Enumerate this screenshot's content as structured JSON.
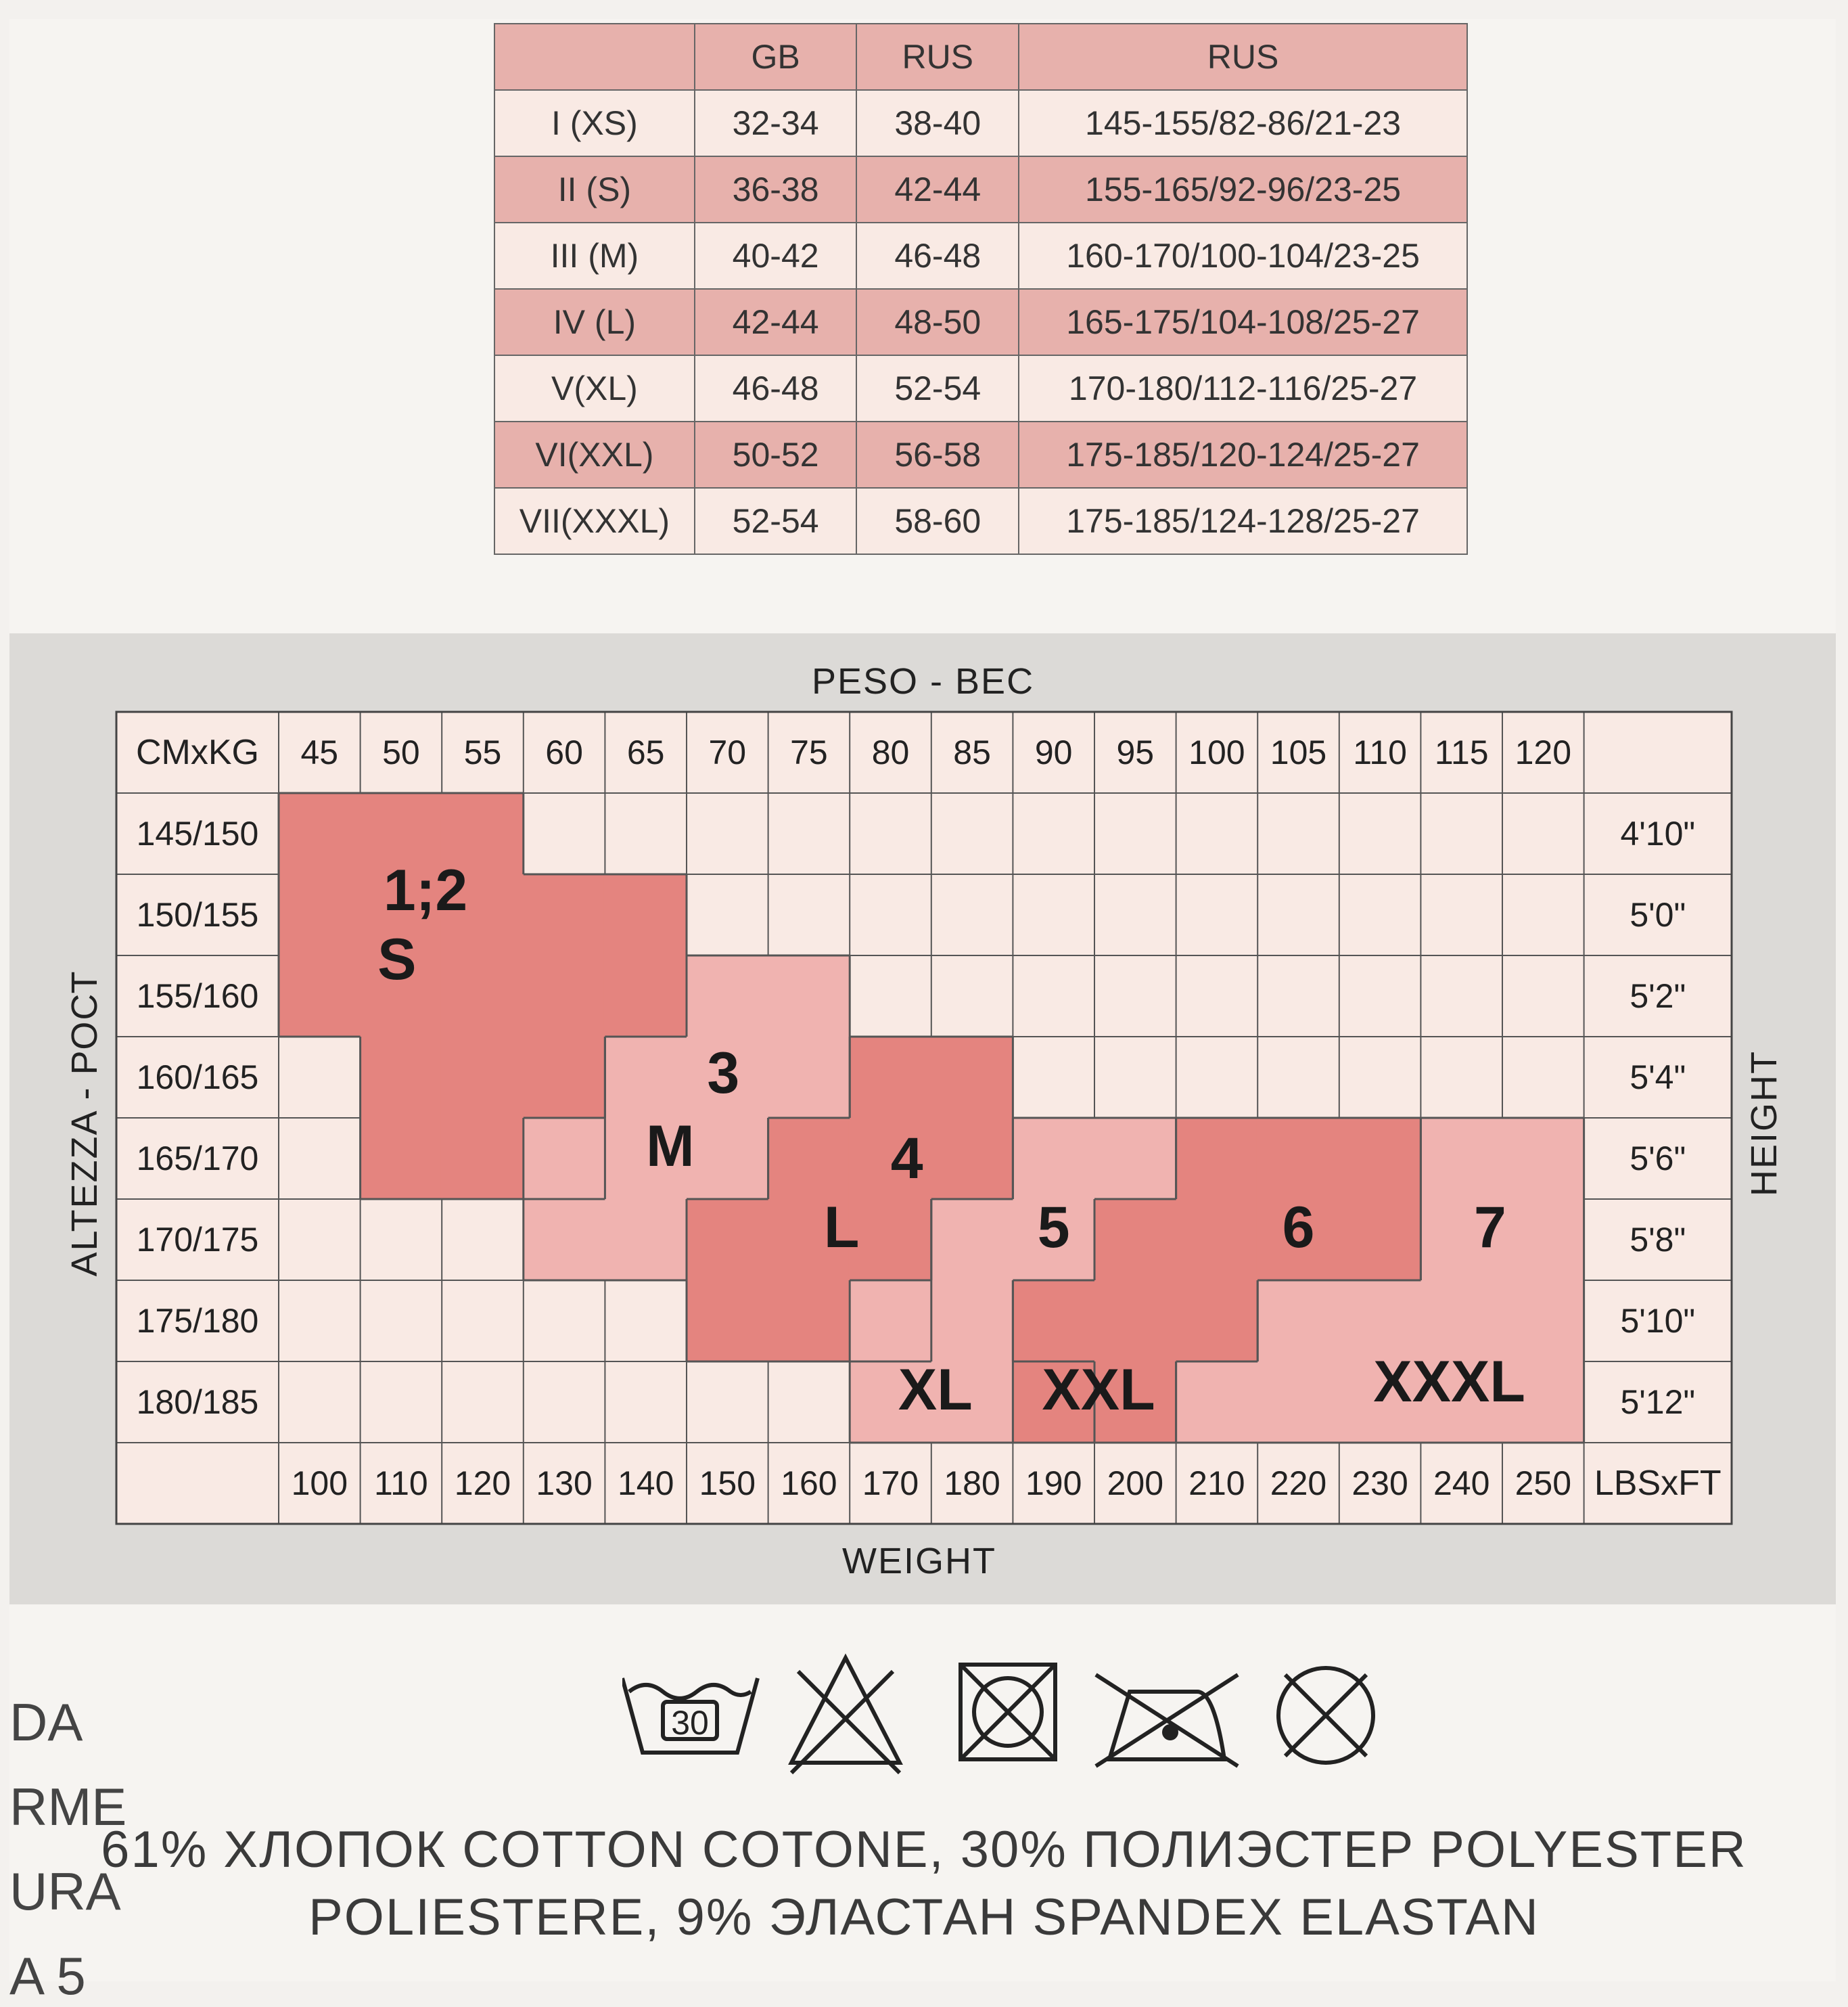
{
  "size_table": {
    "header": [
      "",
      "GB",
      "RUS",
      "RUS"
    ],
    "rows": [
      [
        "I (XS)",
        "32-34",
        "38-40",
        "145-155/82-86/21-23"
      ],
      [
        "II (S)",
        "36-38",
        "42-44",
        "155-165/92-96/23-25"
      ],
      [
        "III (M)",
        "40-42",
        "46-48",
        "160-170/100-104/23-25"
      ],
      [
        "IV (L)",
        "42-44",
        "48-50",
        "165-175/104-108/25-27"
      ],
      [
        "V(XL)",
        "46-48",
        "52-54",
        "170-180/112-116/25-27"
      ],
      [
        "VI(XXL)",
        "50-52",
        "56-58",
        "175-185/120-124/25-27"
      ],
      [
        "VII(XXXL)",
        "52-54",
        "58-60",
        "175-185/124-128/25-27"
      ]
    ]
  },
  "grid": {
    "top_label": "PESO - ВЕС",
    "bottom_label": "WEIGHT",
    "left_label": "ALTEZZA - РОСТ",
    "right_label": "HEIGHT",
    "corner_top": "CMxKG",
    "corner_bottom": "LBSxFT",
    "kg": [
      "45",
      "50",
      "55",
      "60",
      "65",
      "70",
      "75",
      "80",
      "85",
      "90",
      "95",
      "100",
      "105",
      "110",
      "115",
      "120"
    ],
    "lbs": [
      "100",
      "110",
      "120",
      "130",
      "140",
      "150",
      "160",
      "170",
      "180",
      "190",
      "200",
      "210",
      "220",
      "230",
      "240",
      "250"
    ],
    "cm": [
      "145/150",
      "150/155",
      "155/160",
      "160/165",
      "165/170",
      "170/175",
      "175/180",
      "180/185"
    ],
    "ft": [
      "4'10\"",
      "5'0\"",
      "5'2\"",
      "5'4\"",
      "5'6\"",
      "5'8\"",
      "5'10\"",
      "5'12\""
    ],
    "regions": [
      {
        "num": "1;2",
        "size": "S",
        "color": "#e4847f"
      },
      {
        "num": "3",
        "size": "M",
        "color": "#f0b3b0"
      },
      {
        "num": "4",
        "size": "L",
        "color": "#e4847f"
      },
      {
        "num": "5",
        "size": "XL",
        "color": "#f0b3b0"
      },
      {
        "num": "6",
        "size": "XXL",
        "color": "#e4847f"
      },
      {
        "num": "7",
        "size": "XXXL",
        "color": "#f0b3b0"
      }
    ],
    "cell_color": "#f9eae4"
  },
  "care": {
    "wash_temp": "30",
    "icons": [
      "wash-30-icon",
      "no-bleach-icon",
      "no-tumble-dry-icon",
      "iron-low-icon",
      "no-dry-clean-icon"
    ]
  },
  "composition": {
    "line1": "61% ХЛОПОК COTTON COTONE, 30% ПОЛИЭСТЕР POLYESTER",
    "line2": "POLIESTERE, 9% ЭЛАСТАН SPANDEX ELASTAN"
  },
  "left_fragments": [
    "DA",
    "RME",
    "URA",
    "A 5"
  ]
}
